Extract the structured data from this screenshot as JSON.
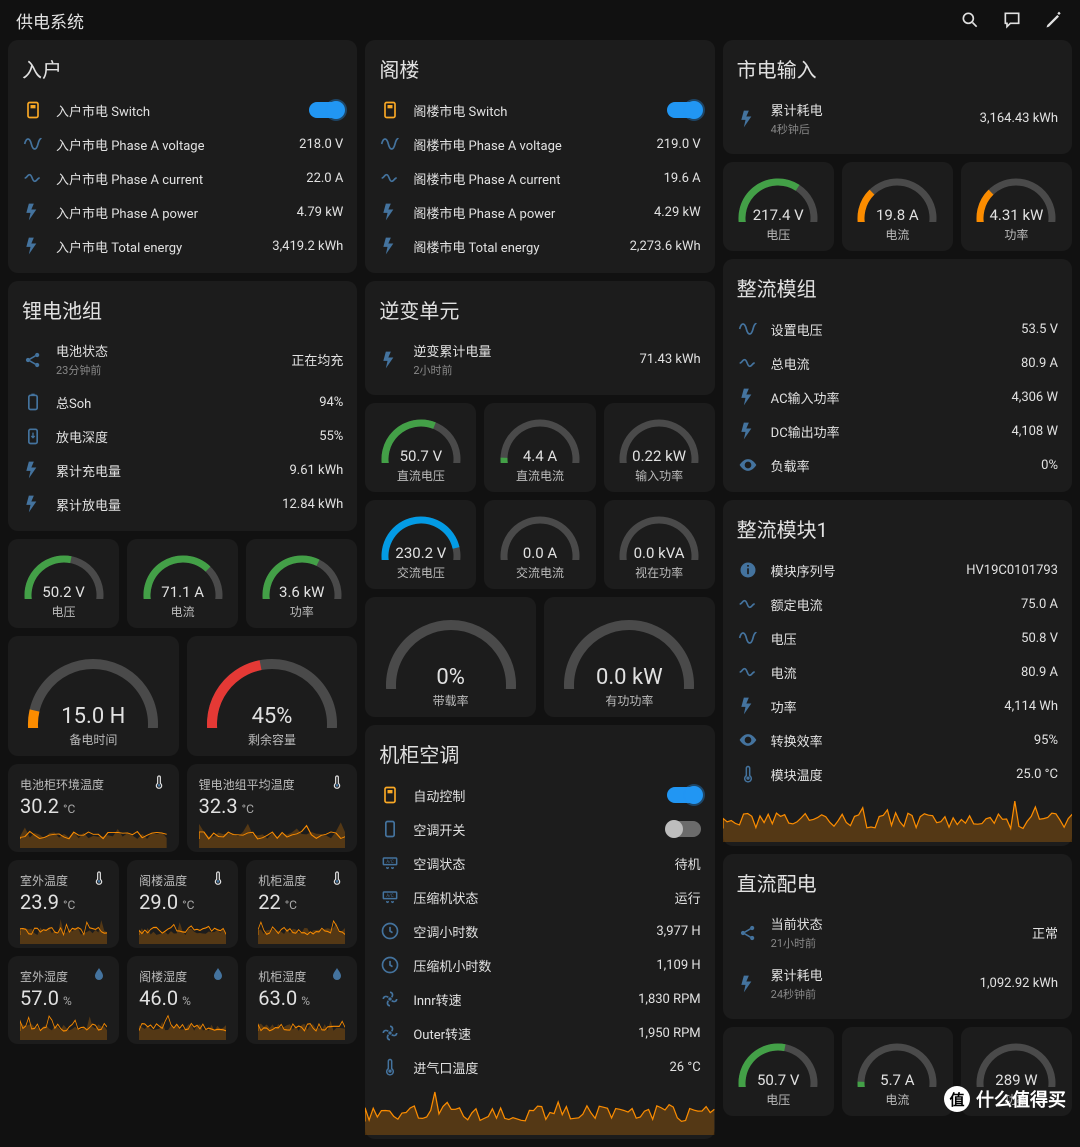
{
  "page_title": "供电系统",
  "colors": {
    "bg": "#111111",
    "card": "#1c1c1c",
    "text": "#e1e1e1",
    "subtext": "#888888",
    "accent": "#44739e",
    "green": "#43a047",
    "orange": "#fb8c00",
    "red": "#e53935",
    "blue": "#039be5",
    "gray_track": "#4a4a4a",
    "spark": "#fb8c00",
    "toggle_on": "#2196f3",
    "toggle_off": "#bdbdbd"
  },
  "col1": {
    "inlet": {
      "title": "入户",
      "rows": [
        {
          "icon": "meter",
          "label": "入户市电 Switch",
          "toggle": true,
          "on": true
        },
        {
          "icon": "sine",
          "label": "入户市电 Phase A voltage",
          "value": "218.0 V"
        },
        {
          "icon": "current",
          "label": "入户市电 Phase A current",
          "value": "22.0 A"
        },
        {
          "icon": "flash",
          "label": "入户市电 Phase A power",
          "value": "4.79 kW"
        },
        {
          "icon": "flash",
          "label": "入户市电 Total energy",
          "value": "3,419.2 kWh"
        }
      ]
    },
    "battery": {
      "title": "锂电池组",
      "rows": [
        {
          "icon": "share",
          "label": "电池状态",
          "sublabel": "23分钟前",
          "value": "正在均充"
        },
        {
          "icon": "bat",
          "label": "总Soh",
          "value": "94%"
        },
        {
          "icon": "batarrow",
          "label": "放电深度",
          "value": "55%"
        },
        {
          "icon": "flash",
          "label": "累计充电量",
          "value": "9.61 kWh"
        },
        {
          "icon": "flash",
          "label": "累计放电量",
          "value": "12.84 kWh"
        }
      ]
    },
    "bat_gauges": [
      {
        "val": "50.2 V",
        "lbl": "电压",
        "color": "#43a047",
        "frac": 0.55
      },
      {
        "val": "71.1 A",
        "lbl": "电流",
        "color": "#43a047",
        "frac": 0.7
      },
      {
        "val": "3.6 kW",
        "lbl": "功率",
        "color": "#43a047",
        "frac": 0.62
      }
    ],
    "bat_big_gauges": [
      {
        "val": "15.0 H",
        "lbl": "备电时间",
        "color": "#fb8c00",
        "frac": 0.15
      },
      {
        "val": "45%",
        "lbl": "剩余容量",
        "color": "#e53935",
        "frac": 0.45
      }
    ],
    "temp_cards": [
      {
        "title": "电池柜环境温度",
        "value": "30.2",
        "unit": "°C",
        "icon": "therm"
      },
      {
        "title": "锂电池组平均温度",
        "value": "32.3",
        "unit": "°C",
        "icon": "therm"
      }
    ],
    "sensor_row1": [
      {
        "title": "室外温度",
        "value": "23.9",
        "unit": "°C",
        "icon": "therm"
      },
      {
        "title": "阁楼温度",
        "value": "29.0",
        "unit": "°C",
        "icon": "therm"
      },
      {
        "title": "机柜温度",
        "value": "22",
        "unit": "°C",
        "icon": "therm"
      }
    ],
    "sensor_row2": [
      {
        "title": "室外湿度",
        "value": "57.0",
        "unit": "%",
        "icon": "water"
      },
      {
        "title": "阁楼湿度",
        "value": "46.0",
        "unit": "%",
        "icon": "water"
      },
      {
        "title": "机柜湿度",
        "value": "63.0",
        "unit": "%",
        "icon": "water"
      }
    ]
  },
  "col2": {
    "attic": {
      "title": "阁楼",
      "rows": [
        {
          "icon": "meter",
          "label": "阁楼市电 Switch",
          "toggle": true,
          "on": true
        },
        {
          "icon": "sine",
          "label": "阁楼市电 Phase A voltage",
          "value": "219.0 V"
        },
        {
          "icon": "current",
          "label": "阁楼市电 Phase A current",
          "value": "19.6 A"
        },
        {
          "icon": "flash",
          "label": "阁楼市电 Phase A power",
          "value": "4.29 kW"
        },
        {
          "icon": "flash",
          "label": "阁楼市电 Total energy",
          "value": "2,273.6 kWh"
        }
      ]
    },
    "inverter": {
      "title": "逆变单元",
      "head": {
        "icon": "flash",
        "label": "逆变累计电量",
        "sublabel": "2小时前",
        "value": "71.43 kWh"
      }
    },
    "inv_g1": [
      {
        "val": "50.7 V",
        "lbl": "直流电压",
        "color": "#43a047",
        "frac": 0.6
      },
      {
        "val": "4.4 A",
        "lbl": "直流电流",
        "color": "#43a047",
        "frac": 0.1
      },
      {
        "val": "0.22 kW",
        "lbl": "输入功率",
        "color": "#43a047",
        "frac": 0.03
      }
    ],
    "inv_g2": [
      {
        "val": "230.2 V",
        "lbl": "交流电压",
        "color": "#039be5",
        "frac": 0.85
      },
      {
        "val": "0.0 A",
        "lbl": "交流电流",
        "color": "#43a047",
        "frac": 0
      },
      {
        "val": "0.0 kVA",
        "lbl": "视在功率",
        "color": "#43a047",
        "frac": 0
      }
    ],
    "inv_g3": [
      {
        "val": "0%",
        "lbl": "带载率",
        "color": "#43a047",
        "frac": 0
      },
      {
        "val": "0.0 kW",
        "lbl": "有功功率",
        "color": "#43a047",
        "frac": 0
      }
    ],
    "ac": {
      "title": "机柜空调",
      "rows": [
        {
          "icon": "meter",
          "label": "自动控制",
          "toggle": true,
          "on": true
        },
        {
          "icon": "phone",
          "label": "空调开关",
          "toggle": true,
          "on": false
        },
        {
          "icon": "ac",
          "label": "空调状态",
          "value": "待机"
        },
        {
          "icon": "ac",
          "label": "压缩机状态",
          "value": "运行"
        },
        {
          "icon": "clock",
          "label": "空调小时数",
          "value": "3,977 H"
        },
        {
          "icon": "clock",
          "label": "压缩机小时数",
          "value": "1,109 H"
        },
        {
          "icon": "fan",
          "label": "Innr转速",
          "value": "1,830 RPM"
        },
        {
          "icon": "fan",
          "label": "Outer转速",
          "value": "1,950 RPM"
        },
        {
          "icon": "therm",
          "label": "进气口温度",
          "value": "26 °C"
        }
      ]
    }
  },
  "col3": {
    "mains": {
      "title": "市电输入",
      "head": {
        "icon": "flash",
        "label": "累计耗电",
        "sublabel": "4秒钟后",
        "value": "3,164.43 kWh"
      }
    },
    "mains_gauges": [
      {
        "val": "217.4 V",
        "lbl": "电压",
        "color": "#43a047",
        "frac": 0.65
      },
      {
        "val": "19.8 A",
        "lbl": "电流",
        "color": "#fb8c00",
        "frac": 0.3
      },
      {
        "val": "4.31 kW",
        "lbl": "功率",
        "color": "#fb8c00",
        "frac": 0.3
      }
    ],
    "rect_group": {
      "title": "整流模组",
      "rows": [
        {
          "icon": "sine",
          "label": "设置电压",
          "value": "53.5 V"
        },
        {
          "icon": "current",
          "label": "总电流",
          "value": "80.9 A"
        },
        {
          "icon": "flash",
          "label": "AC输入功率",
          "value": "4,306 W"
        },
        {
          "icon": "flash",
          "label": "DC输出功率",
          "value": "4,108 W"
        },
        {
          "icon": "eye",
          "label": "负载率",
          "value": "0%"
        }
      ]
    },
    "rect1": {
      "title": "整流模块1",
      "rows": [
        {
          "icon": "info",
          "label": "模块序列号",
          "value": "HV19C0101793"
        },
        {
          "icon": "current",
          "label": "额定电流",
          "value": "75.0 A"
        },
        {
          "icon": "sine",
          "label": "电压",
          "value": "50.8 V"
        },
        {
          "icon": "current",
          "label": "电流",
          "value": "80.9 A"
        },
        {
          "icon": "flash",
          "label": "功率",
          "value": "4,114 Wh"
        },
        {
          "icon": "eye",
          "label": "转换效率",
          "value": "95%"
        },
        {
          "icon": "therm",
          "label": "模块温度",
          "value": "25.0 °C"
        }
      ]
    },
    "dc": {
      "title": "直流配电",
      "rows": [
        {
          "icon": "share",
          "label": "当前状态",
          "sublabel": "21小时前",
          "value": "正常"
        },
        {
          "icon": "flash",
          "label": "累计耗电",
          "sublabel": "24秒钟前",
          "value": "1,092.92 kWh"
        }
      ]
    },
    "dc_gauges": [
      {
        "val": "50.7 V",
        "lbl": "电压",
        "color": "#43a047",
        "frac": 0.55
      },
      {
        "val": "5.7 A",
        "lbl": "电流",
        "color": "#43a047",
        "frac": 0.1
      },
      {
        "val": "289 W",
        "lbl": "功率",
        "color": "#43a047",
        "frac": 0.05
      }
    ]
  },
  "watermark": "什么值得买"
}
